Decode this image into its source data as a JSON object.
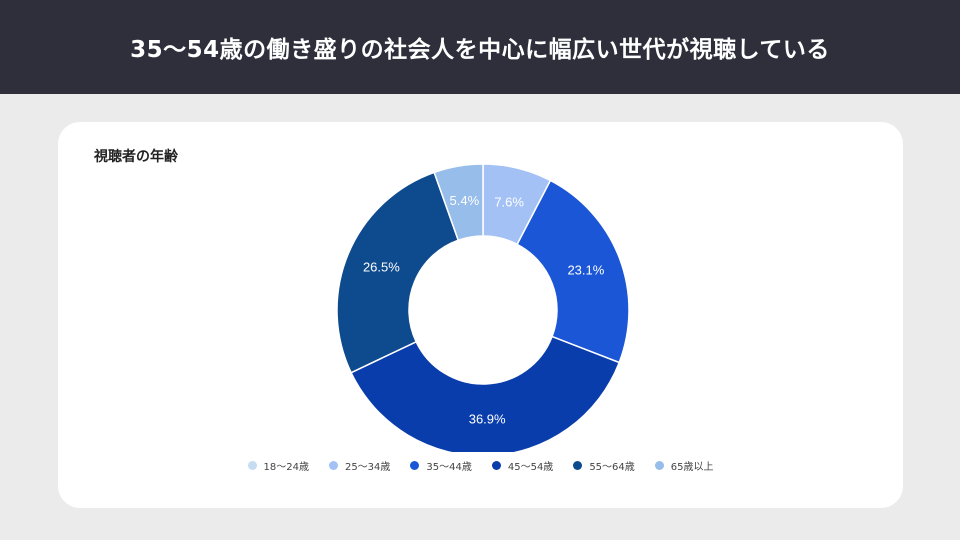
{
  "header": {
    "title": "35〜54歳の働き盛りの社会人を中心に幅広い世代が視聴している"
  },
  "chart_data": {
    "type": "pie",
    "variant": "donut",
    "title": "視聴者の年齢",
    "labels": [
      "18〜24歳",
      "25〜34歳",
      "35〜44歳",
      "45〜54歳",
      "55〜64歳",
      "65歳以上"
    ],
    "values": [
      0.0,
      7.6,
      23.1,
      36.9,
      26.5,
      5.4
    ],
    "value_labels": [
      "",
      "7.6%",
      "23.1%",
      "36.9%",
      "26.5%",
      "5.4%"
    ],
    "colors": [
      "#c6dcf3",
      "#a4c1f5",
      "#1a56d6",
      "#0a3dac",
      "#0e4a8e",
      "#97bdea"
    ],
    "legend_position": "bottom"
  }
}
